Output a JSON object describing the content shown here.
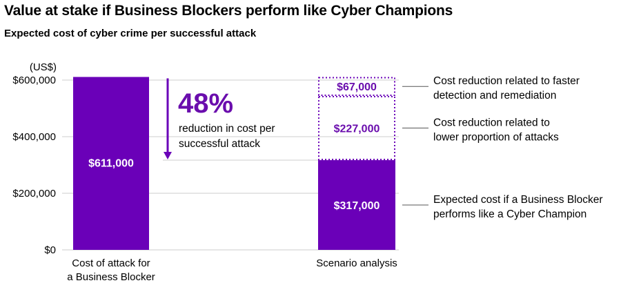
{
  "title": "Value at stake if Business Blockers perform like Cyber Champions",
  "subtitle": "Expected cost of cyber crime per successful attack",
  "colors": {
    "primary": "#6a00b8",
    "accent_text": "#6a0dad",
    "axis": "#cccccc",
    "connector": "#555555"
  },
  "chart_data": {
    "type": "bar",
    "unit_label": "(US$)",
    "ylim": [
      0,
      600000
    ],
    "yticks": [
      {
        "value": 0,
        "label": "$0"
      },
      {
        "value": 200000,
        "label": "$200,000"
      },
      {
        "value": 400000,
        "label": "$400,000"
      },
      {
        "value": 600000,
        "label": "$600,000"
      }
    ],
    "categories": [
      "Cost of attack for a Business Blocker",
      "Scenario analysis"
    ],
    "bars": [
      {
        "category_lines": [
          "Cost of attack for",
          "a Business Blocker"
        ],
        "segments": [
          {
            "value": 611000,
            "label": "$611,000",
            "style": "solid"
          }
        ]
      },
      {
        "category_lines": [
          "Scenario analysis"
        ],
        "segments": [
          {
            "value": 317000,
            "label": "$317,000",
            "style": "solid",
            "note_lines": [
              "Expected cost if a Business Blocker",
              "performs like a Cyber Champion"
            ]
          },
          {
            "value": 227000,
            "label": "$227,000",
            "style": "dotted",
            "note_lines": [
              "Cost reduction related to",
              "lower proportion of attacks"
            ]
          },
          {
            "value": 67000,
            "label": "$67,000",
            "style": "dotted",
            "note_lines": [
              "Cost reduction related to faster",
              "detection and remediation"
            ]
          }
        ]
      }
    ],
    "callout": {
      "percent": "48%",
      "text_lines": [
        "reduction in cost per",
        "successful attack"
      ]
    }
  }
}
